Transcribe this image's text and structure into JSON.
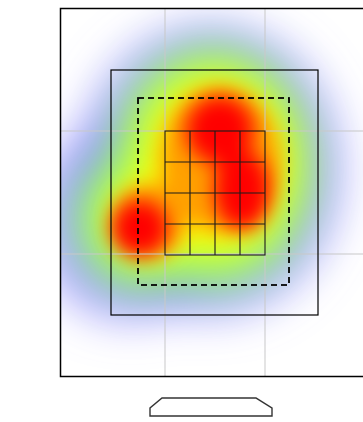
{
  "view": {
    "type": "eye-tracking attention heatmap",
    "legend": {
      "title": "",
      "labels": []
    }
  },
  "colors": {
    "background": "#ffffff",
    "outer_border": "#000000",
    "fine_grid": "#c8c8c8",
    "inner_frame": "#000000",
    "dashed_box": "#000000",
    "inner_grid": "#000000",
    "heatmap_ramp": [
      "#7f7fff",
      "#a8ff8a",
      "#ffff00",
      "#ff8c00",
      "#ff0000"
    ]
  },
  "regions": [
    {
      "name": "center-top",
      "intensity": 1.0
    },
    {
      "name": "center-right",
      "intensity": 0.95
    },
    {
      "name": "left-low",
      "intensity": 0.9
    }
  ],
  "icons": {
    "trapezoid": "display-stand-icon"
  }
}
